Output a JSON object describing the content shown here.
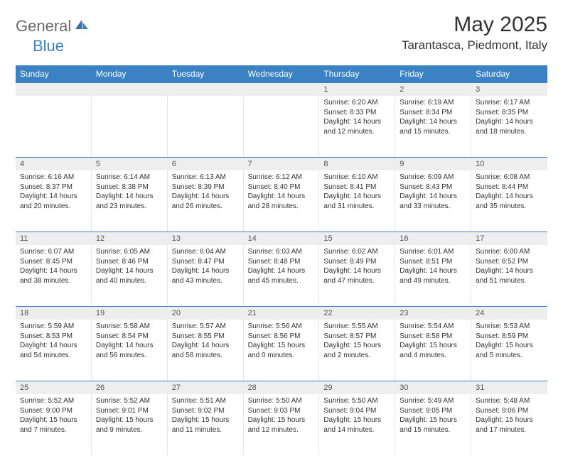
{
  "logo": {
    "text1": "General",
    "text2": "Blue"
  },
  "title": "May 2025",
  "location": "Tarantasca, Piedmont, Italy",
  "colors": {
    "header_bg": "#3b82c4",
    "header_text": "#ffffff",
    "daynum_bg": "#eeeeee",
    "border": "#e5e5e5",
    "logo_gray": "#6b6b6b",
    "logo_blue": "#3b82c4"
  },
  "day_labels": [
    "Sunday",
    "Monday",
    "Tuesday",
    "Wednesday",
    "Thursday",
    "Friday",
    "Saturday"
  ],
  "weeks": [
    [
      null,
      null,
      null,
      null,
      {
        "n": "1",
        "sr": "6:20 AM",
        "ss": "8:33 PM",
        "dl": "14 hours and 12 minutes."
      },
      {
        "n": "2",
        "sr": "6:19 AM",
        "ss": "8:34 PM",
        "dl": "14 hours and 15 minutes."
      },
      {
        "n": "3",
        "sr": "6:17 AM",
        "ss": "8:35 PM",
        "dl": "14 hours and 18 minutes."
      }
    ],
    [
      {
        "n": "4",
        "sr": "6:16 AM",
        "ss": "8:37 PM",
        "dl": "14 hours and 20 minutes."
      },
      {
        "n": "5",
        "sr": "6:14 AM",
        "ss": "8:38 PM",
        "dl": "14 hours and 23 minutes."
      },
      {
        "n": "6",
        "sr": "6:13 AM",
        "ss": "8:39 PM",
        "dl": "14 hours and 26 minutes."
      },
      {
        "n": "7",
        "sr": "6:12 AM",
        "ss": "8:40 PM",
        "dl": "14 hours and 28 minutes."
      },
      {
        "n": "8",
        "sr": "6:10 AM",
        "ss": "8:41 PM",
        "dl": "14 hours and 31 minutes."
      },
      {
        "n": "9",
        "sr": "6:09 AM",
        "ss": "8:43 PM",
        "dl": "14 hours and 33 minutes."
      },
      {
        "n": "10",
        "sr": "6:08 AM",
        "ss": "8:44 PM",
        "dl": "14 hours and 35 minutes."
      }
    ],
    [
      {
        "n": "11",
        "sr": "6:07 AM",
        "ss": "8:45 PM",
        "dl": "14 hours and 38 minutes."
      },
      {
        "n": "12",
        "sr": "6:05 AM",
        "ss": "8:46 PM",
        "dl": "14 hours and 40 minutes."
      },
      {
        "n": "13",
        "sr": "6:04 AM",
        "ss": "8:47 PM",
        "dl": "14 hours and 43 minutes."
      },
      {
        "n": "14",
        "sr": "6:03 AM",
        "ss": "8:48 PM",
        "dl": "14 hours and 45 minutes."
      },
      {
        "n": "15",
        "sr": "6:02 AM",
        "ss": "8:49 PM",
        "dl": "14 hours and 47 minutes."
      },
      {
        "n": "16",
        "sr": "6:01 AM",
        "ss": "8:51 PM",
        "dl": "14 hours and 49 minutes."
      },
      {
        "n": "17",
        "sr": "6:00 AM",
        "ss": "8:52 PM",
        "dl": "14 hours and 51 minutes."
      }
    ],
    [
      {
        "n": "18",
        "sr": "5:59 AM",
        "ss": "8:53 PM",
        "dl": "14 hours and 54 minutes."
      },
      {
        "n": "19",
        "sr": "5:58 AM",
        "ss": "8:54 PM",
        "dl": "14 hours and 56 minutes."
      },
      {
        "n": "20",
        "sr": "5:57 AM",
        "ss": "8:55 PM",
        "dl": "14 hours and 58 minutes."
      },
      {
        "n": "21",
        "sr": "5:56 AM",
        "ss": "8:56 PM",
        "dl": "15 hours and 0 minutes."
      },
      {
        "n": "22",
        "sr": "5:55 AM",
        "ss": "8:57 PM",
        "dl": "15 hours and 2 minutes."
      },
      {
        "n": "23",
        "sr": "5:54 AM",
        "ss": "8:58 PM",
        "dl": "15 hours and 4 minutes."
      },
      {
        "n": "24",
        "sr": "5:53 AM",
        "ss": "8:59 PM",
        "dl": "15 hours and 5 minutes."
      }
    ],
    [
      {
        "n": "25",
        "sr": "5:52 AM",
        "ss": "9:00 PM",
        "dl": "15 hours and 7 minutes."
      },
      {
        "n": "26",
        "sr": "5:52 AM",
        "ss": "9:01 PM",
        "dl": "15 hours and 9 minutes."
      },
      {
        "n": "27",
        "sr": "5:51 AM",
        "ss": "9:02 PM",
        "dl": "15 hours and 11 minutes."
      },
      {
        "n": "28",
        "sr": "5:50 AM",
        "ss": "9:03 PM",
        "dl": "15 hours and 12 minutes."
      },
      {
        "n": "29",
        "sr": "5:50 AM",
        "ss": "9:04 PM",
        "dl": "15 hours and 14 minutes."
      },
      {
        "n": "30",
        "sr": "5:49 AM",
        "ss": "9:05 PM",
        "dl": "15 hours and 15 minutes."
      },
      {
        "n": "31",
        "sr": "5:48 AM",
        "ss": "9:06 PM",
        "dl": "15 hours and 17 minutes."
      }
    ]
  ],
  "labels": {
    "sunrise": "Sunrise:",
    "sunset": "Sunset:",
    "daylight": "Daylight:"
  }
}
